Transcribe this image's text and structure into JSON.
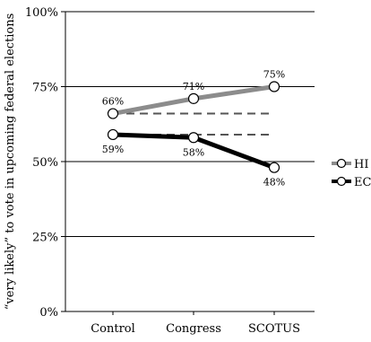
{
  "chart_data": {
    "type": "line",
    "categories": [
      "Control",
      "Congress",
      "SCOTUS"
    ],
    "ylabel": "“very likely” to vote in upcoming federal elections",
    "ylim": [
      0,
      100
    ],
    "yticks": [
      0,
      25,
      50,
      75,
      100
    ],
    "ytick_labels": [
      "0%",
      "25%",
      "50%",
      "75%",
      "100%"
    ],
    "grid": true,
    "legend_position": "right",
    "series": [
      {
        "name": "HI",
        "values": [
          66,
          71,
          75
        ],
        "labels": [
          "66%",
          "71%",
          "75%"
        ],
        "color": "#8c8c8c"
      },
      {
        "name": "EC",
        "values": [
          59,
          58,
          48
        ],
        "labels": [
          "59%",
          "58%",
          "48%"
        ],
        "color": "#000000"
      }
    ],
    "reference_lines": [
      {
        "value": 66,
        "from_category": "Control",
        "to_category": "SCOTUS",
        "style": "dashed",
        "color": "#555555"
      },
      {
        "value": 59,
        "from_category": "Control",
        "to_category": "SCOTUS",
        "style": "dashed",
        "color": "#555555"
      }
    ]
  }
}
